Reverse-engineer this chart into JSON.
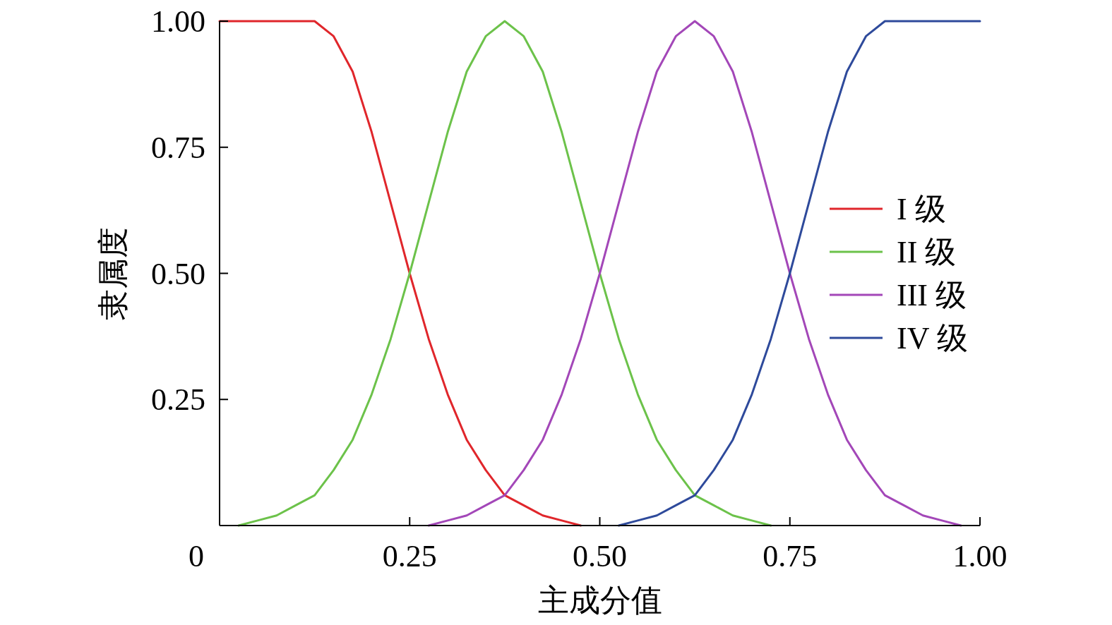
{
  "chart_data": {
    "type": "line",
    "xlabel": "主成分值",
    "ylabel": "隶属度",
    "x": [
      0,
      0.025,
      0.05,
      0.075,
      0.1,
      0.125,
      0.15,
      0.175,
      0.2,
      0.225,
      0.25,
      0.275,
      0.3,
      0.325,
      0.35,
      0.375,
      0.4,
      0.425,
      0.45,
      0.475,
      0.5,
      0.525,
      0.55,
      0.575,
      0.6,
      0.625,
      0.65,
      0.675,
      0.7,
      0.725,
      0.75,
      0.775,
      0.8,
      0.825,
      0.85,
      0.875,
      0.9,
      0.925,
      0.95,
      0.975,
      1
    ],
    "series": [
      {
        "name": "I 级",
        "color": "#e0262b",
        "values": [
          1,
          1,
          1,
          1,
          1,
          1,
          0.97,
          0.9,
          0.78,
          0.64,
          0.5,
          0.37,
          0.26,
          0.17,
          0.11,
          0.06,
          0.04,
          0.02,
          0.01,
          0,
          null,
          null,
          null,
          null,
          null,
          null,
          null,
          null,
          null,
          null,
          null,
          null,
          null,
          null,
          null,
          null,
          null,
          null,
          null,
          null,
          null
        ]
      },
      {
        "name": "II 级",
        "color": "#6cc24a",
        "values": [
          null,
          0,
          0.01,
          0.02,
          0.04,
          0.06,
          0.11,
          0.17,
          0.26,
          0.37,
          0.5,
          0.64,
          0.78,
          0.9,
          0.97,
          1,
          0.97,
          0.9,
          0.78,
          0.64,
          0.5,
          0.37,
          0.26,
          0.17,
          0.11,
          0.06,
          0.04,
          0.02,
          0.01,
          0,
          null,
          null,
          null,
          null,
          null,
          null,
          null,
          null,
          null,
          null,
          null
        ]
      },
      {
        "name": "III 级",
        "color": "#a347b8",
        "values": [
          null,
          null,
          null,
          null,
          null,
          null,
          null,
          null,
          null,
          null,
          null,
          0,
          0.01,
          0.02,
          0.04,
          0.06,
          0.11,
          0.17,
          0.26,
          0.37,
          0.5,
          0.64,
          0.78,
          0.9,
          0.97,
          1,
          0.97,
          0.9,
          0.78,
          0.64,
          0.5,
          0.37,
          0.26,
          0.17,
          0.11,
          0.06,
          0.04,
          0.02,
          0.01,
          0,
          null
        ]
      },
      {
        "name": "IV 级",
        "color": "#2e4a9b",
        "values": [
          null,
          null,
          null,
          null,
          null,
          null,
          null,
          null,
          null,
          null,
          null,
          null,
          null,
          null,
          null,
          null,
          null,
          null,
          null,
          null,
          null,
          0,
          0.01,
          0.02,
          0.04,
          0.06,
          0.11,
          0.17,
          0.26,
          0.37,
          0.5,
          0.64,
          0.78,
          0.9,
          0.97,
          1,
          1,
          1,
          1,
          1,
          1
        ]
      }
    ],
    "xlim": [
      0,
      1
    ],
    "ylim": [
      0,
      1
    ],
    "xticks": [
      {
        "value": 0,
        "label": "0"
      },
      {
        "value": 0.25,
        "label": "0.25"
      },
      {
        "value": 0.5,
        "label": "0.50"
      },
      {
        "value": 0.75,
        "label": "0.75"
      },
      {
        "value": 1,
        "label": "1.00"
      }
    ],
    "yticks": [
      {
        "value": 0,
        "label": null
      },
      {
        "value": 0.25,
        "label": "0.25"
      },
      {
        "value": 0.5,
        "label": "0.50"
      },
      {
        "value": 0.75,
        "label": "0.75"
      },
      {
        "value": 1,
        "label": "1.00"
      }
    ],
    "legend": "right",
    "grid": false,
    "marker": "none",
    "line_style": "solid"
  }
}
